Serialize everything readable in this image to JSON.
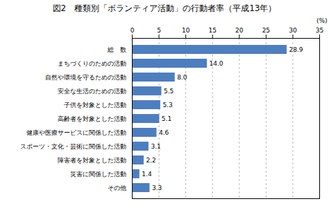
{
  "chart_data": {
    "type": "bar",
    "orientation": "horizontal",
    "title": "図2　種類別「ボランティア活動」の行動者率（平成13年）",
    "xlabel": "(%)",
    "categories": [
      "総　数",
      "まちづくりのための活動",
      "自然や環境を守るための活動",
      "安全な生活のための活動",
      "子供を対象とした活動",
      "高齢者を対象とした活動",
      "健康や医療サービスに関係した活動",
      "スポーツ・文化・芸術に関係した活動",
      "障害者を対象とした活動",
      "災害に関係した活動",
      "その他"
    ],
    "values": [
      28.9,
      14.0,
      8.0,
      5.5,
      5.3,
      5.1,
      4.6,
      3.1,
      2.2,
      1.4,
      3.3
    ],
    "value_labels": [
      "28.9",
      "14.0",
      "8.0",
      "5.5",
      "5.3",
      "5.1",
      "4.6",
      "3.1",
      "2.2",
      "1.4",
      "3.3"
    ],
    "color": "#4d7ebf",
    "xlim": [
      0,
      35
    ],
    "xticks": [
      0,
      5,
      10,
      15,
      20,
      25,
      30,
      35
    ],
    "grid": true,
    "data_labels": true
  }
}
